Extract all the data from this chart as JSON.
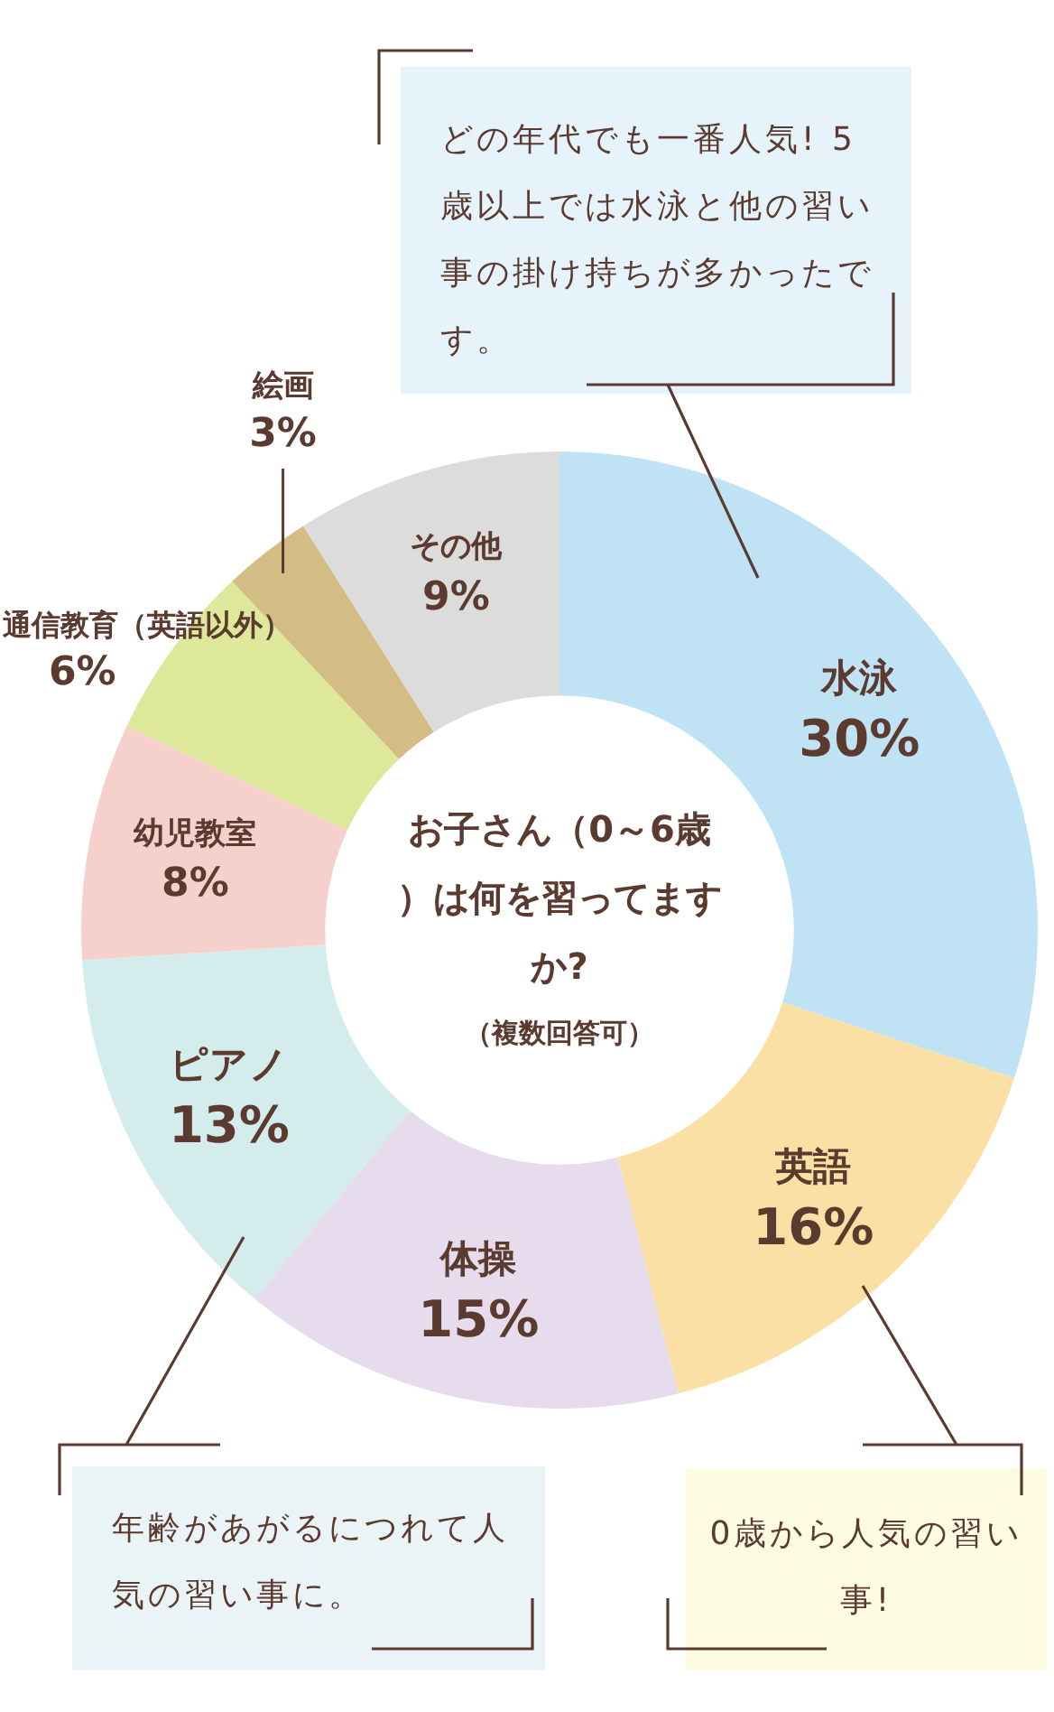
{
  "chart_data": {
    "type": "donut",
    "title": "お子さん（0～6歳）は何を習ってますか?",
    "subtitle": "（複数回答可）",
    "categories": [
      "水泳",
      "英語",
      "体操",
      "ピアノ",
      "幼児教室",
      "通信教育（英語以外）",
      "絵画",
      "その他"
    ],
    "values": [
      30,
      16,
      15,
      13,
      8,
      6,
      3,
      9
    ],
    "value_labels": [
      "30%",
      "16%",
      "15%",
      "13%",
      "8%",
      "6%",
      "3%",
      "9%"
    ],
    "colors": [
      "#bfe2f5",
      "#fbe0a5",
      "#e6dcee",
      "#d5ecec",
      "#f6d0cc",
      "#dde89a",
      "#d4bd85",
      "#dcdcdc"
    ],
    "legend": false,
    "annotations": [
      "どの年代でも一番人気! 5歳以上では水泳と他の習い事の掛け持ちが多かったです。",
      "年齢があがるにつれて人気の習い事に。",
      "0歳から人気の習い事!"
    ]
  }
}
